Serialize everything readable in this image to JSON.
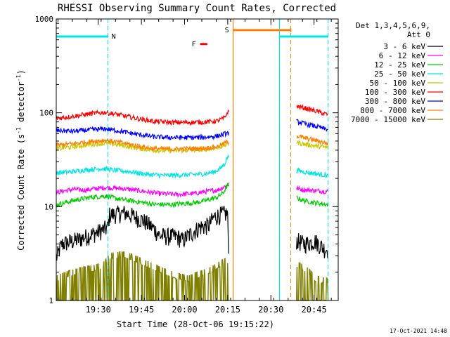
{
  "chart_data": {
    "type": "line",
    "title": "RHESSI Observing Summary Count Rates, Corrected",
    "xlabel": "Start Time (28-Oct-06 19:15:22)",
    "ylabel_parts": [
      "Corrected Count Rate (s",
      "-1",
      " detector",
      "-1",
      ")"
    ],
    "yscale": "log",
    "ylim": [
      1,
      1000
    ],
    "xlim_minutes": [
      0,
      98
    ],
    "x_ticks": [
      {
        "label": "19:30",
        "minute": 14.6
      },
      {
        "label": "19:45",
        "minute": 29.6
      },
      {
        "label": "20:00",
        "minute": 44.6
      },
      {
        "label": "20:15",
        "minute": 59.6
      },
      {
        "label": "20:30",
        "minute": 74.6
      },
      {
        "label": "20:45",
        "minute": 89.6
      }
    ],
    "y_ticks": [
      {
        "label": "1",
        "value": 1
      },
      {
        "label": "10",
        "value": 10
      },
      {
        "label": "100",
        "value": 100
      },
      {
        "label": "1000",
        "value": 1000
      }
    ],
    "legend": {
      "position": "right",
      "header": [
        "Det 1,3,4,5,6,9,",
        "Att 0"
      ],
      "entries": [
        {
          "label": "3 - 6 keV",
          "color": "#000000"
        },
        {
          "label": "6 - 12 keV",
          "color": "#ff00ff"
        },
        {
          "label": "12 - 25 keV",
          "color": "#00cc00"
        },
        {
          "label": "25 - 50 keV",
          "color": "#00e5e5"
        },
        {
          "label": "50 - 100 keV",
          "color": "#c8c800"
        },
        {
          "label": "100 - 300 keV",
          "color": "#ff0000"
        },
        {
          "label": "300 - 800 keV",
          "color": "#0000ff"
        },
        {
          "label": "800 - 7000 keV",
          "color": "#ff8000"
        },
        {
          "label": "7000 - 15000 keV",
          "color": "#808000"
        }
      ]
    },
    "annotations": {
      "night_marker": {
        "label": "N",
        "color": "#00e5e5",
        "spans": [
          [
            0,
            18
          ],
          [
            77.6,
            94.5
          ]
        ],
        "level": 650
      },
      "flare_marker": {
        "label": "F",
        "color": "#ff0000",
        "span": [
          50,
          52.5
        ],
        "level": 540
      },
      "saa_marker": {
        "label": "S",
        "color": "#ff8000",
        "span": [
          61.5,
          81.5
        ],
        "level": 760
      },
      "dashed_lines_minutes": [
        {
          "minute": 18,
          "color": "#00e5e5"
        },
        {
          "minute": 81.5,
          "color": "#ff8000"
        },
        {
          "minute": 94.5,
          "color": "#00e5e5"
        }
      ],
      "solid_lines_minutes": [
        {
          "minute": 61.5,
          "color": "#ff8000"
        },
        {
          "minute": 77.6,
          "color": "#00e5e5"
        }
      ]
    },
    "segments": [
      [
        0,
        60
      ],
      [
        83.5,
        94.5
      ]
    ],
    "series": [
      {
        "name": "3 - 6 keV",
        "color": "#000000",
        "points": [
          [
            0,
            2.8
          ],
          [
            2,
            4.0
          ],
          [
            8,
            4.5
          ],
          [
            14,
            5.3
          ],
          [
            18,
            6.0
          ],
          [
            18.5,
            8.2
          ],
          [
            24,
            8.6
          ],
          [
            30,
            7.2
          ],
          [
            34,
            5.8
          ],
          [
            36,
            4.9
          ],
          [
            42,
            4.8
          ],
          [
            44,
            4.4
          ],
          [
            47,
            5.2
          ],
          [
            50,
            6.1
          ],
          [
            53,
            6.3
          ],
          [
            55,
            7.8
          ],
          [
            58,
            8.4
          ],
          [
            59.6,
            8.5
          ],
          [
            59.8,
            3.2
          ],
          [
            83.5,
            4.4
          ],
          [
            86,
            4.0
          ],
          [
            90,
            4.3
          ],
          [
            93,
            3.6
          ],
          [
            94.5,
            3.5
          ]
        ]
      },
      {
        "name": "6 - 12 keV",
        "color": "#ff00ff",
        "points": [
          [
            0,
            14.2
          ],
          [
            6,
            15.3
          ],
          [
            10,
            15.0
          ],
          [
            17,
            16.0
          ],
          [
            24,
            15.5
          ],
          [
            30,
            14.6
          ],
          [
            36,
            13.8
          ],
          [
            42,
            13.5
          ],
          [
            48,
            13.8
          ],
          [
            52,
            14.5
          ],
          [
            56,
            15.0
          ],
          [
            59.6,
            17.0
          ],
          [
            83.5,
            15.6
          ],
          [
            86,
            15.2
          ],
          [
            90,
            14.8
          ],
          [
            94.5,
            14.5
          ]
        ]
      },
      {
        "name": "12 - 25 keV",
        "color": "#00cc00",
        "points": [
          [
            0,
            10.5
          ],
          [
            6,
            11.6
          ],
          [
            12,
            12.6
          ],
          [
            17,
            13.0
          ],
          [
            22,
            12.0
          ],
          [
            28,
            11.3
          ],
          [
            34,
            10.6
          ],
          [
            40,
            10.5
          ],
          [
            44,
            10.8
          ],
          [
            48,
            11.0
          ],
          [
            52,
            11.6
          ],
          [
            56,
            12.6
          ],
          [
            58,
            14.0
          ],
          [
            59.6,
            17.0
          ],
          [
            83.5,
            12.5
          ],
          [
            86,
            11.6
          ],
          [
            90,
            11.0
          ],
          [
            94.5,
            10.5
          ]
        ]
      },
      {
        "name": "25 - 50 keV",
        "color": "#00e5e5",
        "points": [
          [
            0,
            23.0
          ],
          [
            5,
            23.5
          ],
          [
            10,
            24.6
          ],
          [
            16,
            25.5
          ],
          [
            20,
            24.5
          ],
          [
            26,
            23.5
          ],
          [
            32,
            22.0
          ],
          [
            38,
            21.5
          ],
          [
            44,
            21.8
          ],
          [
            48,
            22.0
          ],
          [
            52,
            22.5
          ],
          [
            55,
            23.5
          ],
          [
            57,
            25.5
          ],
          [
            58.5,
            28.5
          ],
          [
            59.6,
            34.0
          ],
          [
            83.5,
            24.5
          ],
          [
            86,
            23.5
          ],
          [
            90,
            22.5
          ],
          [
            94.5,
            21.5
          ]
        ]
      },
      {
        "name": "50 - 100 keV",
        "color": "#c8c800",
        "points": [
          [
            0,
            41.5
          ],
          [
            6,
            43.5
          ],
          [
            12,
            46.0
          ],
          [
            17,
            47.5
          ],
          [
            22,
            45.5
          ],
          [
            28,
            42.0
          ],
          [
            34,
            40.0
          ],
          [
            40,
            39.5
          ],
          [
            46,
            39.8
          ],
          [
            52,
            41.0
          ],
          [
            56,
            42.5
          ],
          [
            59.6,
            46.5
          ],
          [
            83.5,
            48.5
          ],
          [
            86,
            46.5
          ],
          [
            90,
            44.5
          ],
          [
            94.5,
            42.5
          ]
        ]
      },
      {
        "name": "100 - 300 keV",
        "color": "#ff0000",
        "points": [
          [
            0,
            87
          ],
          [
            6,
            92
          ],
          [
            12,
            98
          ],
          [
            17,
            101
          ],
          [
            22,
            95
          ],
          [
            28,
            87
          ],
          [
            34,
            81
          ],
          [
            40,
            79
          ],
          [
            46,
            79
          ],
          [
            52,
            80
          ],
          [
            56,
            82
          ],
          [
            58.5,
            88
          ],
          [
            59.6,
            102
          ],
          [
            83.5,
            118
          ],
          [
            86,
            113
          ],
          [
            90,
            105
          ],
          [
            94.5,
            95
          ]
        ]
      },
      {
        "name": "300 - 800 keV",
        "color": "#0000ff",
        "points": [
          [
            0,
            65
          ],
          [
            6,
            63.5
          ],
          [
            12,
            66
          ],
          [
            17,
            67.5
          ],
          [
            22,
            64
          ],
          [
            28,
            59
          ],
          [
            34,
            55.5
          ],
          [
            40,
            54.5
          ],
          [
            46,
            54.5
          ],
          [
            52,
            55
          ],
          [
            56,
            56.5
          ],
          [
            59.6,
            61
          ],
          [
            83.5,
            81
          ],
          [
            86,
            77
          ],
          [
            90,
            72
          ],
          [
            94.5,
            66
          ]
        ]
      },
      {
        "name": "800 - 7000 keV",
        "color": "#ff8000",
        "points": [
          [
            0,
            45
          ],
          [
            6,
            47
          ],
          [
            12,
            49.5
          ],
          [
            17,
            51
          ],
          [
            22,
            48.5
          ],
          [
            28,
            44.5
          ],
          [
            34,
            41.5
          ],
          [
            40,
            41
          ],
          [
            46,
            41.5
          ],
          [
            52,
            42
          ],
          [
            56,
            43.5
          ],
          [
            59.6,
            49
          ],
          [
            83.5,
            57
          ],
          [
            86,
            54
          ],
          [
            90,
            51
          ],
          [
            94.5,
            47
          ]
        ]
      },
      {
        "name": "7000 - 15000 keV",
        "color": "#808000",
        "points": [
          [
            0,
            1.6
          ],
          [
            4,
            1.8
          ],
          [
            10,
            2.0
          ],
          [
            14,
            2.1
          ],
          [
            17,
            2.3
          ],
          [
            18.5,
            2.8
          ],
          [
            24,
            2.9
          ],
          [
            30,
            2.4
          ],
          [
            36,
            2.0
          ],
          [
            42,
            1.7
          ],
          [
            46,
            1.6
          ],
          [
            50,
            1.8
          ],
          [
            54,
            2.0
          ],
          [
            57,
            2.3
          ],
          [
            59.6,
            2.5
          ],
          [
            83.5,
            2.3
          ],
          [
            87,
            2.0
          ],
          [
            90,
            1.6
          ],
          [
            94.5,
            1.5
          ]
        ]
      }
    ]
  },
  "footer": {
    "timestamp": "17-Oct-2021 14:48"
  }
}
